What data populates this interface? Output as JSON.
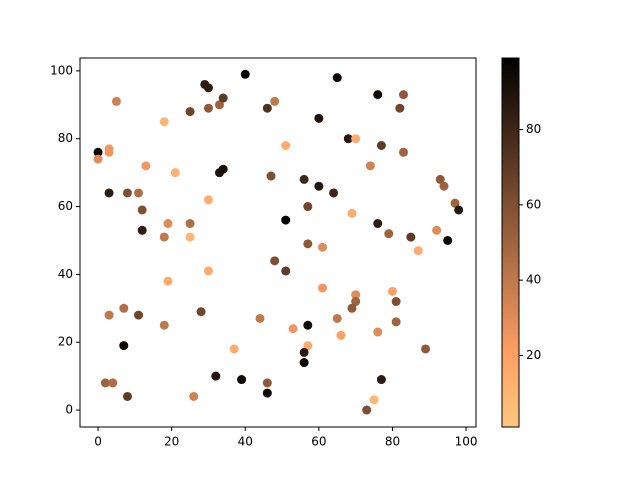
{
  "chart_data": {
    "type": "scatter",
    "x": [
      0,
      0,
      3,
      3,
      3,
      5,
      8,
      11,
      12,
      12,
      13,
      18,
      21,
      18,
      19,
      25,
      25,
      19,
      29,
      30,
      25,
      30,
      33,
      34,
      30,
      33,
      34,
      40,
      46,
      48,
      51,
      47,
      51,
      56,
      60,
      64,
      57,
      60,
      65,
      68,
      70,
      76,
      77,
      74,
      82,
      83,
      83,
      69,
      76,
      79,
      85,
      87,
      57,
      61,
      48,
      51,
      61,
      70,
      70,
      69,
      65,
      53,
      57,
      66,
      57,
      56,
      56,
      80,
      81,
      81,
      76,
      77,
      75,
      73,
      89,
      93,
      94,
      97,
      98,
      95,
      92,
      44,
      37,
      30,
      28,
      18,
      11,
      7,
      3,
      7,
      2,
      4,
      8,
      26,
      32,
      39,
      46,
      46
    ],
    "y": [
      76,
      74,
      77,
      76,
      64,
      91,
      64,
      64,
      59,
      53,
      72,
      85,
      70,
      51,
      55,
      55,
      51,
      38,
      96,
      95,
      88,
      89,
      90,
      92,
      62,
      70,
      71,
      99,
      89,
      91,
      78,
      69,
      56,
      68,
      66,
      64,
      60,
      86,
      98,
      80,
      80,
      93,
      78,
      72,
      89,
      93,
      76,
      58,
      55,
      52,
      51,
      47,
      49,
      48,
      44,
      41,
      36,
      34,
      32,
      30,
      27,
      24,
      25,
      22,
      19,
      17,
      14,
      35,
      32,
      26,
      23,
      9,
      3,
      0,
      18,
      68,
      66,
      61,
      59,
      50,
      53,
      27,
      18,
      41,
      29,
      25,
      28,
      30,
      28,
      19,
      8,
      8,
      4,
      4,
      10,
      9,
      8,
      5
    ],
    "c": [
      95,
      30,
      25,
      25,
      85,
      35,
      60,
      45,
      60,
      85,
      25,
      10,
      12,
      40,
      30,
      45,
      10,
      15,
      85,
      85,
      65,
      55,
      50,
      70,
      15,
      90,
      92,
      98,
      75,
      40,
      15,
      60,
      98,
      80,
      88,
      80,
      65,
      90,
      95,
      88,
      15,
      95,
      70,
      35,
      65,
      55,
      50,
      15,
      85,
      50,
      70,
      15,
      55,
      30,
      60,
      70,
      25,
      30,
      50,
      55,
      40,
      25,
      95,
      20,
      15,
      85,
      95,
      20,
      60,
      50,
      30,
      85,
      10,
      60,
      55,
      55,
      50,
      50,
      88,
      95,
      30,
      40,
      15,
      15,
      65,
      40,
      65,
      45,
      40,
      95,
      50,
      45,
      70,
      35,
      88,
      95,
      55,
      95
    ],
    "colormap": "copper_r",
    "clim": [
      1,
      99
    ],
    "cticks": [
      20,
      40,
      60,
      80
    ],
    "xlim": [
      -4.9,
      102.7
    ],
    "ylim": [
      -5,
      103.8
    ],
    "xticks": [
      0,
      20,
      40,
      60,
      80,
      100
    ],
    "yticks": [
      0,
      20,
      40,
      60,
      80,
      100
    ]
  }
}
